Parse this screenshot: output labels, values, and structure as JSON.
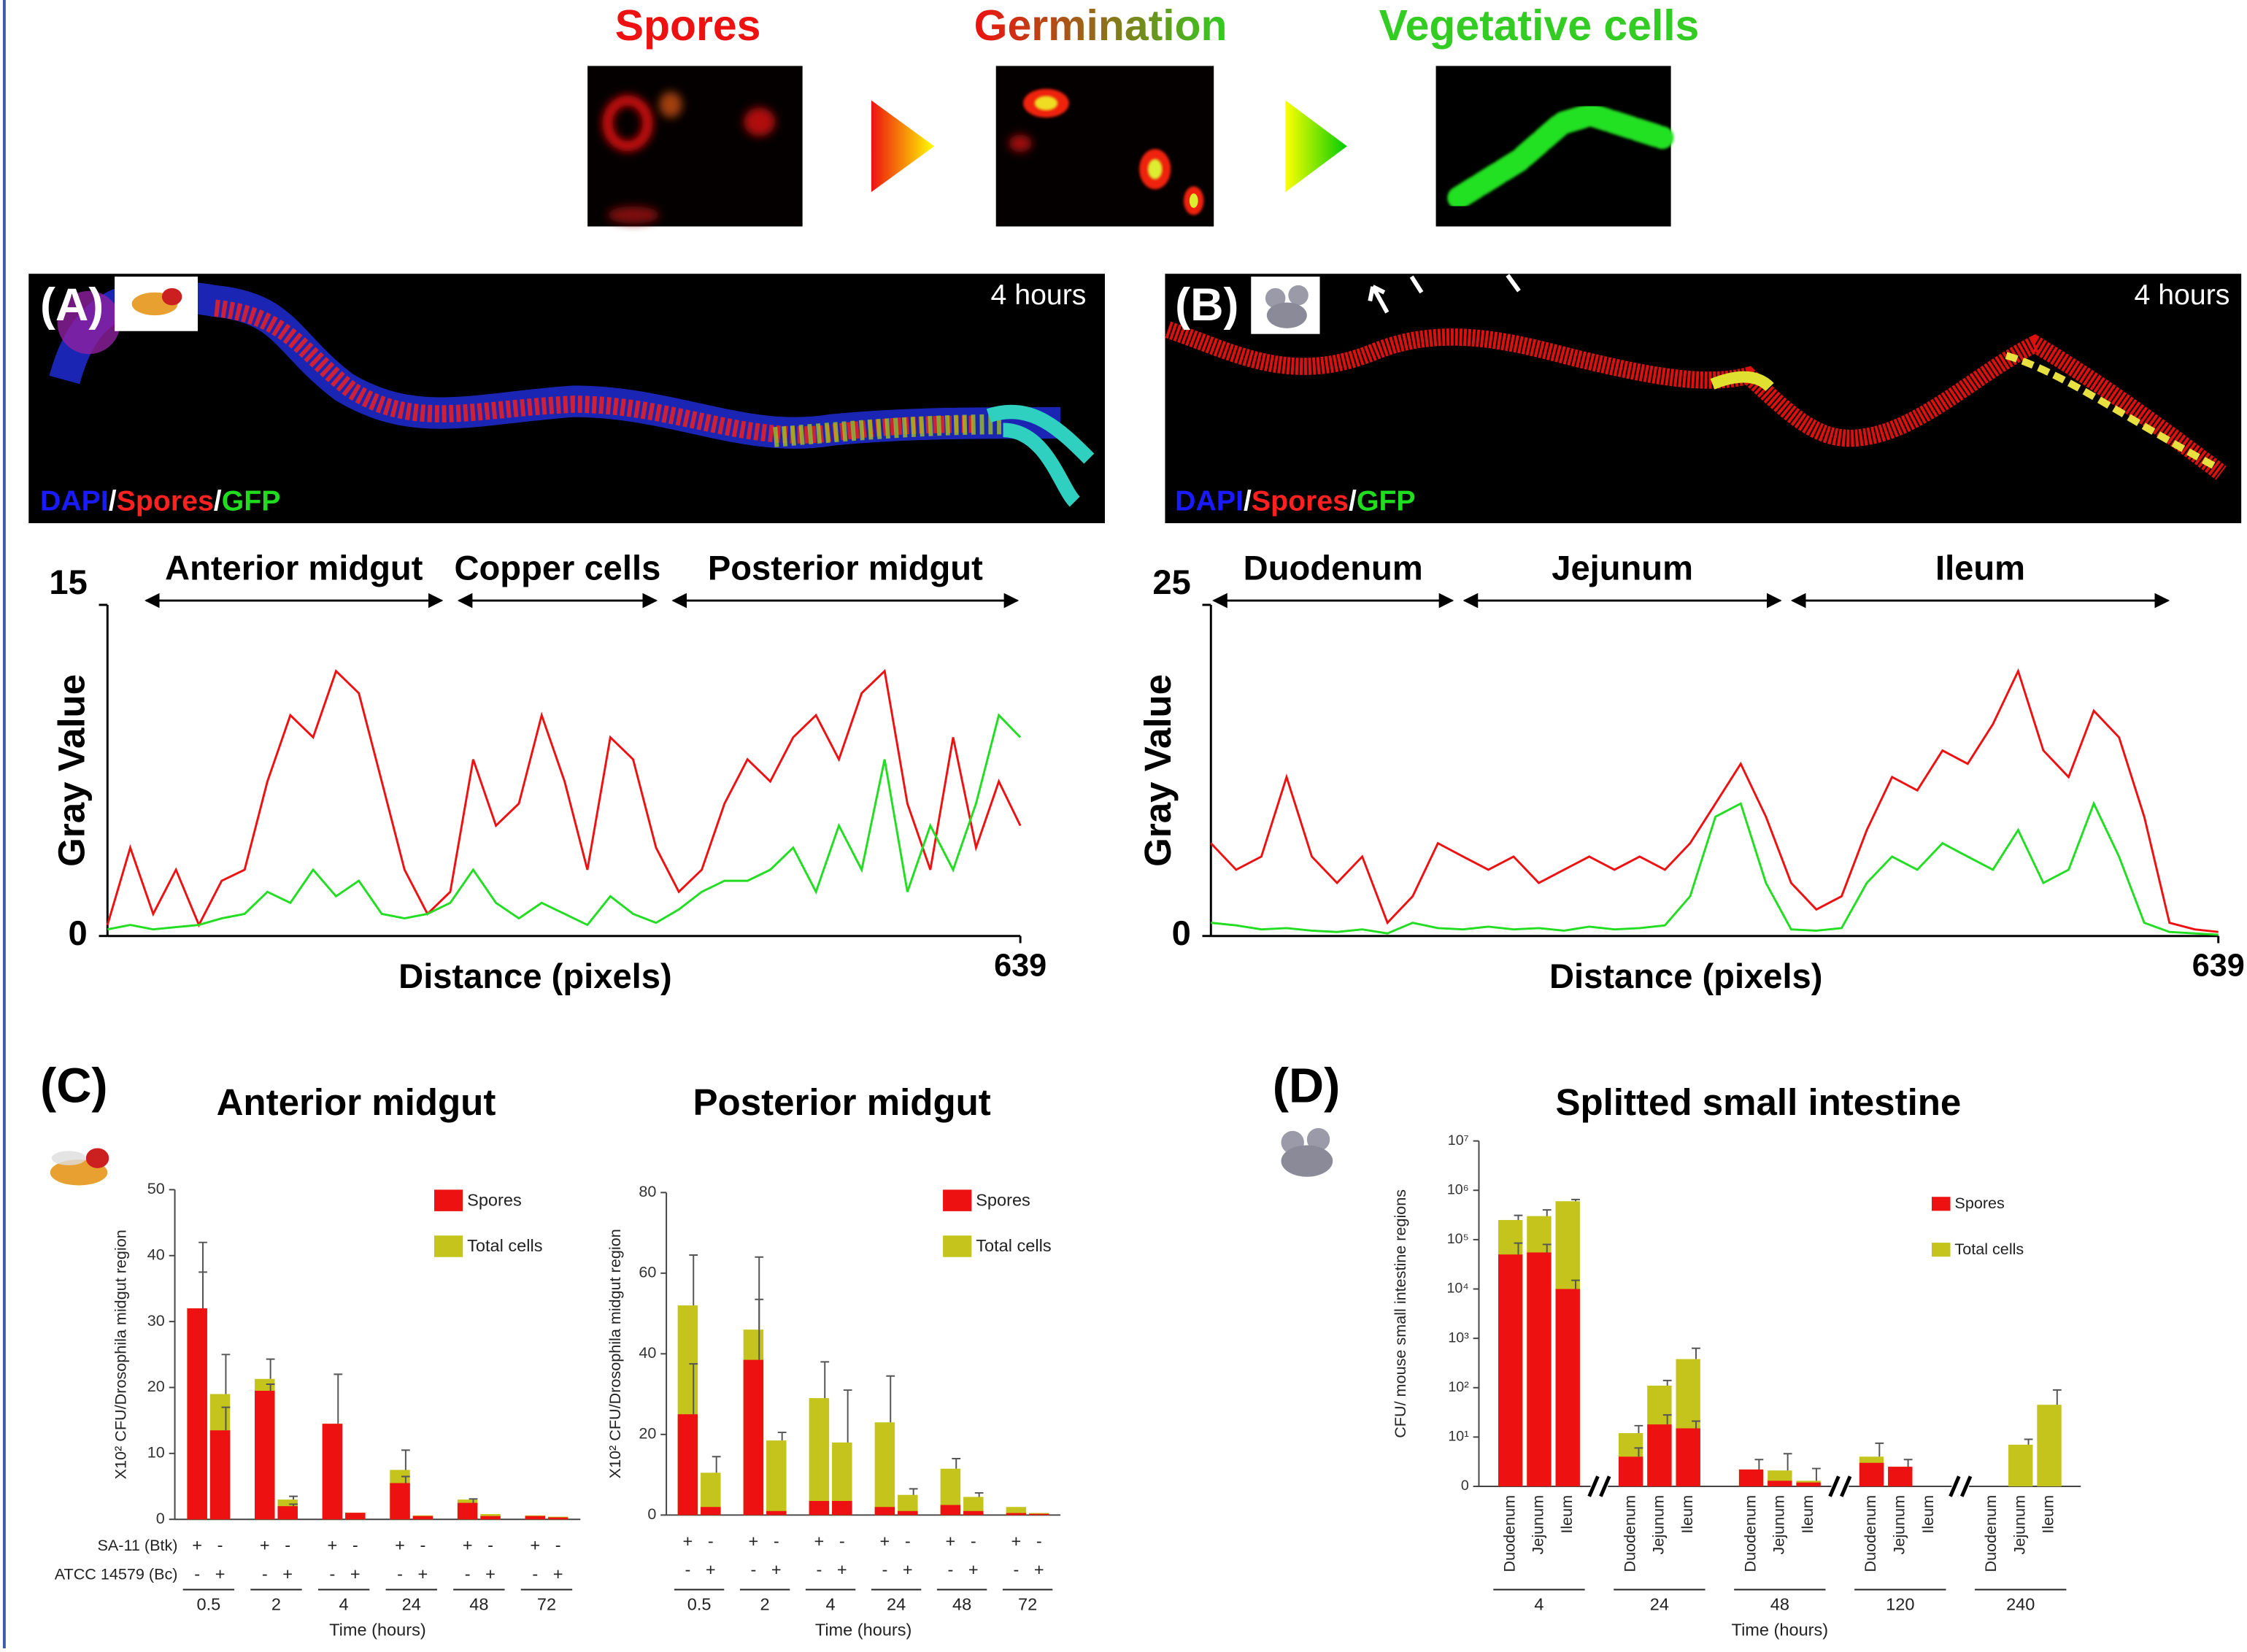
{
  "stages": [
    "Spores",
    "Germination",
    "Vegetative cells"
  ],
  "panels": [
    {
      "label": "(A)",
      "time": "4 hours",
      "stain": [
        "DAPI",
        "/",
        "Spores",
        "/",
        "GFP"
      ]
    },
    {
      "label": "(B)",
      "time": "4 hours",
      "stain": [
        "DAPI",
        "/",
        "Spores",
        "/",
        "GFP"
      ]
    },
    {
      "label": "(C)"
    },
    {
      "label": "(D)"
    }
  ],
  "chart_data": [
    {
      "type": "line",
      "ylabel": "Gray Value",
      "xlabel": "Distance (pixels)",
      "xlim": [
        0,
        639
      ],
      "xticks": [
        639
      ],
      "ylim": [
        0,
        15
      ],
      "yticks": [
        0,
        15
      ],
      "regions": [
        {
          "label": "Anterior midgut",
          "range": [
            25,
            236
          ]
        },
        {
          "label": "Copper cells",
          "range": [
            244,
            386
          ]
        },
        {
          "label": "Posterior midgut",
          "range": [
            394,
            639
          ]
        }
      ],
      "x": [
        0,
        16,
        32,
        48,
        64,
        80,
        96,
        112,
        128,
        144,
        160,
        176,
        192,
        208,
        224,
        240,
        256,
        272,
        288,
        304,
        320,
        336,
        352,
        368,
        384,
        400,
        416,
        432,
        448,
        464,
        480,
        496,
        512,
        528,
        544,
        560,
        576,
        592,
        608,
        624,
        639
      ],
      "series": [
        {
          "color": "#ee1111",
          "values": [
            0.5,
            4,
            1,
            3,
            0.5,
            2.5,
            3,
            7,
            10,
            9,
            12,
            11,
            7,
            3,
            1,
            2,
            8,
            5,
            6,
            10,
            7,
            3,
            9,
            8,
            4,
            2,
            3,
            6,
            8,
            7,
            9,
            10,
            8,
            11,
            12,
            6,
            3,
            9,
            4,
            7,
            5
          ]
        },
        {
          "color": "#22dd22",
          "values": [
            0.3,
            0.5,
            0.3,
            0.4,
            0.5,
            0.8,
            1,
            2,
            1.5,
            3,
            1.8,
            2.5,
            1,
            0.8,
            1,
            1.5,
            3,
            1.5,
            0.8,
            1.5,
            1,
            0.5,
            1.8,
            1,
            0.6,
            1.2,
            2,
            2.5,
            2.5,
            3,
            4,
            2,
            5,
            3,
            8,
            2,
            5,
            3,
            6,
            10,
            9
          ]
        }
      ]
    },
    {
      "type": "line",
      "ylabel": "Gray Value",
      "xlabel": "Distance (pixels)",
      "xlim": [
        0,
        639
      ],
      "xticks": [
        639
      ],
      "ylim": [
        0,
        25
      ],
      "yticks": [
        0,
        25
      ],
      "regions": [
        {
          "label": "Duodenum",
          "range": [
            0,
            155
          ]
        },
        {
          "label": "Jejunum",
          "range": [
            159,
            363
          ]
        },
        {
          "label": "Ileum",
          "range": [
            367,
            609
          ]
        }
      ],
      "x": [
        0,
        16,
        32,
        48,
        64,
        80,
        96,
        112,
        128,
        144,
        160,
        176,
        192,
        208,
        224,
        240,
        256,
        272,
        288,
        304,
        320,
        336,
        352,
        368,
        384,
        400,
        416,
        432,
        448,
        464,
        480,
        496,
        512,
        528,
        544,
        560,
        576,
        592,
        608,
        624,
        639
      ],
      "series": [
        {
          "color": "#ee1111",
          "values": [
            7,
            5,
            6,
            12,
            6,
            4,
            6,
            1,
            3,
            7,
            6,
            5,
            6,
            4,
            5,
            6,
            5,
            6,
            5,
            7,
            10,
            13,
            9,
            4,
            2,
            3,
            8,
            12,
            11,
            14,
            13,
            16,
            20,
            14,
            12,
            17,
            15,
            9,
            1,
            0.5,
            0.3
          ]
        },
        {
          "color": "#22dd22",
          "values": [
            1,
            0.8,
            0.5,
            0.6,
            0.4,
            0.3,
            0.5,
            0.2,
            1,
            0.6,
            0.5,
            0.7,
            0.5,
            0.6,
            0.4,
            0.7,
            0.5,
            0.6,
            0.8,
            3,
            9,
            10,
            4,
            0.5,
            0.4,
            0.6,
            4,
            6,
            5,
            7,
            6,
            5,
            8,
            4,
            5,
            10,
            6,
            1,
            0.3,
            0.2,
            0.1
          ]
        }
      ]
    },
    {
      "type": "bar",
      "title": "Anterior midgut",
      "ylabel": "X10² CFU/Drosophila midgut region",
      "xlabel": "Time (hours)",
      "ylim": [
        0,
        50
      ],
      "yticks": [
        0,
        10,
        20,
        30,
        40,
        50
      ],
      "groups": [
        "0.5",
        "2",
        "4",
        "24",
        "48",
        "72"
      ],
      "conditions": [
        {
          "label": "SA-11 (Btk)",
          "signs": [
            "+",
            "-",
            "+",
            "-",
            "+",
            "-",
            "+",
            "-",
            "+",
            "-",
            "+",
            "-"
          ]
        },
        {
          "label": "ATCC 14579 (Bc)",
          "signs": [
            "-",
            "+",
            "-",
            "+",
            "-",
            "+",
            "-",
            "+",
            "-",
            "+",
            "-",
            "+"
          ]
        }
      ],
      "series": [
        {
          "name": "Spores",
          "color": "#ee1111",
          "values": [
            32,
            13.5,
            19.5,
            2,
            14.5,
            1,
            5.5,
            0.5,
            2.5,
            0.5,
            0.5,
            0.3
          ],
          "errors": [
            5.5,
            3.5,
            1,
            0.3,
            null,
            null,
            1,
            null,
            0.6,
            null,
            null,
            null
          ]
        },
        {
          "name": "Total cells",
          "color": "#c4c41c",
          "values": [
            32,
            19,
            21.3,
            3,
            14.5,
            1,
            7.5,
            0.6,
            3,
            0.8,
            0.6,
            0.4
          ],
          "errors": [
            10,
            6,
            3,
            0.5,
            7.5,
            null,
            3,
            null,
            null,
            null,
            null,
            null
          ]
        }
      ]
    },
    {
      "type": "bar",
      "title": "Posterior midgut",
      "ylabel": "X10² CFU/Drosophila midgut region",
      "xlabel": "Time (hours)",
      "ylim": [
        0,
        80
      ],
      "yticks": [
        0,
        20,
        40,
        60,
        80
      ],
      "groups": [
        "0.5",
        "2",
        "4",
        "24",
        "48",
        "72"
      ],
      "conditions": [
        {
          "signs": [
            "+",
            "-",
            "+",
            "-",
            "+",
            "-",
            "+",
            "-",
            "+",
            "-",
            "+",
            "-"
          ]
        },
        {
          "signs": [
            "-",
            "+",
            "-",
            "+",
            "-",
            "+",
            "-",
            "+",
            "-",
            "+",
            "-",
            "+"
          ]
        }
      ],
      "series": [
        {
          "name": "Spores",
          "color": "#ee1111",
          "values": [
            25,
            2,
            38.5,
            1,
            3.5,
            3.5,
            2,
            1,
            2.5,
            1,
            0.5,
            0.3
          ],
          "errors": [
            12.5,
            null,
            15,
            null,
            null,
            null,
            null,
            null,
            null,
            null,
            null,
            null
          ]
        },
        {
          "name": "Total cells",
          "color": "#c4c41c",
          "values": [
            52,
            10.5,
            46,
            18.5,
            29,
            18,
            23,
            5,
            11.5,
            4.5,
            2,
            0.5
          ],
          "errors": [
            12.5,
            4,
            18,
            2,
            9,
            13,
            11.5,
            1.5,
            2.5,
            1,
            null,
            null
          ]
        }
      ]
    },
    {
      "type": "bar",
      "title": "Splitted small intestine",
      "ylabel": "CFU/ mouse small intestine regions",
      "xlabel": "Time (hours)",
      "log": true,
      "ylim": [
        1,
        10000000
      ],
      "yticks": [
        {
          "value": 1,
          "label": "0"
        },
        {
          "value": 10,
          "label": "10¹"
        },
        {
          "value": 100,
          "label": "10²"
        },
        {
          "value": 1000,
          "label": "10³"
        },
        {
          "value": 10000,
          "label": "10⁴"
        },
        {
          "value": 100000,
          "label": "10⁵"
        },
        {
          "value": 1000000,
          "label": "10⁶"
        },
        {
          "value": 10000000,
          "label": "10⁷"
        }
      ],
      "groups": [
        "4",
        "24",
        "48",
        "120",
        "240"
      ],
      "categories": [
        "Duodenum",
        "Jejunum",
        "Ileum",
        "Duodenum",
        "Jejunum",
        "Ileum",
        "Duodenum",
        "Jejunum",
        "Ileum",
        "Duodenum",
        "Jejunum",
        "Ileum",
        "Duodenum",
        "Jejunum",
        "Ileum"
      ],
      "series": [
        {
          "name": "Spores",
          "color": "#ee1111",
          "values": [
            50000,
            55000,
            10000,
            4,
            18,
            15,
            2.2,
            1.3,
            1.2,
            3,
            2.5,
            null,
            null,
            null,
            null
          ],
          "errors": [
            35000,
            25000,
            5000,
            2,
            10,
            6,
            null,
            null,
            null,
            null,
            null,
            null,
            null,
            null,
            null
          ]
        },
        {
          "name": "Total cells",
          "color": "#c4c41c",
          "values": [
            250000,
            300000,
            600000,
            12,
            110,
            380,
            2.2,
            2.1,
            1.3,
            4,
            2.5,
            null,
            null,
            7,
            45
          ],
          "errors": [
            60000,
            100000,
            50000,
            5,
            30,
            250,
            1.3,
            2.5,
            1,
            3.5,
            1,
            null,
            null,
            2,
            45
          ]
        }
      ]
    }
  ]
}
